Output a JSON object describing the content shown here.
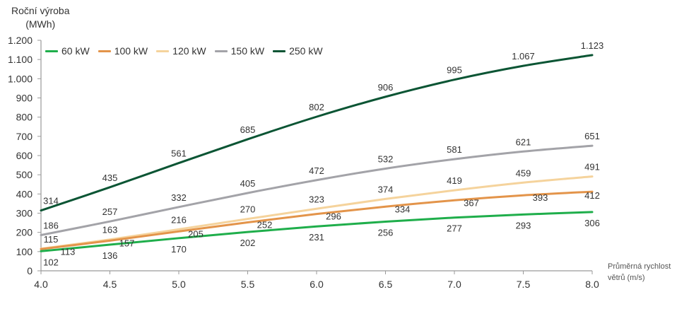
{
  "chart_data": {
    "type": "line",
    "title": "",
    "ylabel_line1": "Roční výroba",
    "ylabel_line2": "(MWh)",
    "xlabel_line1": "Průměrná rychlost",
    "xlabel_line2": "větrů (m/s)",
    "x": [
      4.0,
      4.5,
      5.0,
      5.5,
      6.0,
      6.5,
      7.0,
      7.5,
      8.0
    ],
    "xticks": [
      "4.0",
      "4.5",
      "5.0",
      "5.5",
      "6.0",
      "6.5",
      "7.0",
      "7.5",
      "8.0"
    ],
    "ylim": [
      0,
      1200
    ],
    "yticks": [
      0,
      100,
      200,
      300,
      400,
      500,
      600,
      700,
      800,
      900,
      1000,
      1100,
      1200
    ],
    "ytick_labels": [
      "0",
      "100",
      "200",
      "300",
      "400",
      "500",
      "600",
      "700",
      "800",
      "900",
      "1.000",
      "1.100",
      "1.200"
    ],
    "grid": false,
    "legend_position": "top-left",
    "series": [
      {
        "name": "60 kW",
        "color": "#1fae4b",
        "label_side": "below",
        "values": [
          102,
          136,
          170,
          202,
          231,
          256,
          277,
          293,
          306
        ],
        "labels": [
          "102",
          "136",
          "170",
          "202",
          "231",
          "256",
          "277",
          "293",
          "306"
        ]
      },
      {
        "name": "100 kW",
        "color": "#e3944a",
        "label_side": "right",
        "values": [
          113,
          157,
          205,
          252,
          296,
          334,
          367,
          393,
          412
        ],
        "labels": [
          "113",
          "157",
          "205",
          "252",
          "296",
          "334",
          "367",
          "393",
          "412"
        ]
      },
      {
        "name": "120 kW",
        "color": "#f5d39c",
        "label_side": "above",
        "values": [
          115,
          163,
          216,
          270,
          323,
          374,
          419,
          459,
          491
        ],
        "labels": [
          "115",
          "163",
          "216",
          "270",
          "323",
          "374",
          "419",
          "459",
          "491"
        ]
      },
      {
        "name": "150 kW",
        "color": "#a3a3a8",
        "label_side": "above",
        "values": [
          186,
          257,
          332,
          405,
          472,
          532,
          581,
          621,
          651
        ],
        "labels": [
          "186",
          "257",
          "332",
          "405",
          "472",
          "532",
          "581",
          "621",
          "651"
        ]
      },
      {
        "name": "250 kW",
        "color": "#0b5534",
        "label_side": "above",
        "values": [
          314,
          435,
          561,
          685,
          802,
          906,
          995,
          1067,
          1123
        ],
        "labels": [
          "314",
          "435",
          "561",
          "685",
          "802",
          "906",
          "995",
          "1.067",
          "1.123"
        ]
      }
    ]
  }
}
